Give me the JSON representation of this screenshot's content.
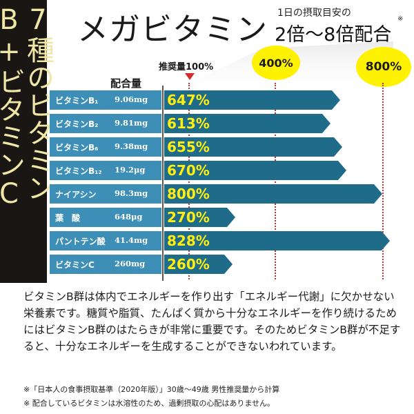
{
  "side_title": "7種のビタミンB+ビタミンC",
  "title": "メガビタミン",
  "subtitle_small": "1日の摂取目安の",
  "subtitle_large": "2倍〜8倍配合",
  "subtitle_mark": "※",
  "badges": {
    "b400": "400%",
    "b800": "800%"
  },
  "reference_label": "推奨量100%",
  "column_header": "配合量",
  "items": [
    {
      "name": "ビタミンB₁",
      "amount": "9.06mg",
      "pct": "647%",
      "value": 647
    },
    {
      "name": "ビタミンB₂",
      "amount": "9.81mg",
      "pct": "613%",
      "value": 613
    },
    {
      "name": "ビタミンB₆",
      "amount": "9.38mg",
      "pct": "655%",
      "value": 655
    },
    {
      "name": "ビタミンB₁₂",
      "amount": "19.2μg",
      "pct": "670%",
      "value": 670
    },
    {
      "name": "ナイアシン",
      "amount": "98.3mg",
      "pct": "800%",
      "value": 800
    },
    {
      "name": "葉　酸",
      "amount": "648μg",
      "pct": "270%",
      "value": 270
    },
    {
      "name": "パントテン酸",
      "amount": "41.4mg",
      "pct": "828%",
      "value": 828
    },
    {
      "name": "ビタミンC",
      "amount": "260mg",
      "pct": "260%",
      "value": 260
    }
  ],
  "description": "ビタミンB群は体内でエネルギーを作り出す「エネルギー代謝」に欠かせない栄養素です。糖質や脂質、たんぱく質から十分なエネルギーを作り続けるためにはビタミンB群のはたらきが非常に重要です。そのためビタミンB群が不足すると、十分なエネルギーを生成することができないわれています。",
  "notes": [
    "※「日本人の食事摂取基準（2020年版）」30歳〜49歳 男性推奨量から計算",
    "※ 配合しているビタミンは水溶性のため、過剰摂取の心配はありません。"
  ],
  "colors": {
    "label_bg": "#3e8fb8",
    "bar": "#1f6c8a",
    "pct_text": "#ffee10",
    "badge": "#fff200",
    "side_bg": "#1a1613",
    "side_text": "#f0e6a6"
  }
}
